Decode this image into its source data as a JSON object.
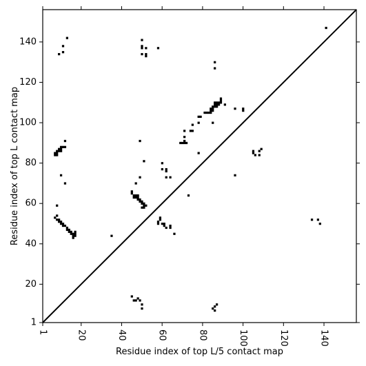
{
  "chart_data": {
    "type": "scatter",
    "subtype": "contact-map",
    "title": "",
    "xlabel": "Residue index of top L/5 contact map",
    "ylabel": "Residue index of top L contact map",
    "xlim": [
      1,
      156
    ],
    "ylim": [
      1,
      156
    ],
    "x_ticks": [
      1,
      20,
      40,
      60,
      80,
      100,
      120,
      140
    ],
    "y_ticks": [
      1,
      20,
      40,
      60,
      80,
      100,
      120,
      140
    ],
    "x_tick_labels": [
      "1",
      "20",
      "40",
      "60",
      "80",
      "100",
      "120",
      "140"
    ],
    "y_tick_labels": [
      "1",
      "20",
      "40",
      "60",
      "80",
      "100",
      "120",
      "140"
    ],
    "x_tick_rotation": 270,
    "diagonal_line": true,
    "grid": false,
    "mark_color": "#000000",
    "line_color": "#000000",
    "series": [
      {
        "name": "",
        "region": "above-diagonal",
        "points": [
          [
            9,
            134
          ],
          [
            11,
            135
          ],
          [
            11,
            138
          ],
          [
            13,
            142
          ],
          [
            50,
            134
          ],
          [
            50,
            137
          ],
          [
            50,
            138
          ],
          [
            50,
            141
          ],
          [
            52,
            133
          ],
          [
            52,
            134
          ],
          [
            52,
            137
          ],
          [
            58,
            137
          ],
          [
            86,
            127
          ],
          [
            86,
            130
          ],
          [
            89,
            110
          ],
          [
            89,
            111
          ],
          [
            89,
            112
          ],
          [
            91,
            109
          ],
          [
            96,
            107
          ],
          [
            100,
            106
          ],
          [
            100,
            107
          ],
          [
            141,
            147
          ],
          [
            71,
            90
          ],
          [
            71,
            91
          ],
          [
            71,
            93
          ],
          [
            71,
            96
          ],
          [
            75,
            96
          ],
          [
            75,
            99
          ],
          [
            78,
            100
          ],
          [
            78,
            103
          ],
          [
            81,
            105
          ],
          [
            82,
            105
          ],
          [
            83,
            105
          ],
          [
            84,
            105
          ],
          [
            84,
            106
          ],
          [
            84,
            107
          ],
          [
            85,
            106
          ],
          [
            85,
            107
          ],
          [
            85,
            108
          ],
          [
            86,
            108
          ],
          [
            86,
            109
          ],
          [
            86,
            110
          ],
          [
            87,
            108
          ],
          [
            87,
            109
          ],
          [
            87,
            110
          ],
          [
            88,
            109
          ],
          [
            88,
            110
          ],
          [
            85,
            100
          ],
          [
            70,
            90
          ],
          [
            72,
            90
          ],
          [
            74,
            96
          ],
          [
            79,
            103
          ],
          [
            69,
            90
          ]
        ]
      },
      {
        "name": "",
        "region": "below-diagonal",
        "points": [
          [
            7,
            84
          ],
          [
            7,
            85
          ],
          [
            8,
            84
          ],
          [
            8,
            85
          ],
          [
            8,
            86
          ],
          [
            9,
            86
          ],
          [
            9,
            87
          ],
          [
            10,
            86
          ],
          [
            10,
            87
          ],
          [
            10,
            88
          ],
          [
            11,
            88
          ],
          [
            12,
            88
          ],
          [
            12,
            91
          ],
          [
            10,
            74
          ],
          [
            12,
            70
          ],
          [
            7,
            53
          ],
          [
            8,
            54
          ],
          [
            8,
            52
          ],
          [
            9,
            52
          ],
          [
            9,
            51
          ],
          [
            10,
            51
          ],
          [
            10,
            50
          ],
          [
            11,
            50
          ],
          [
            11,
            49
          ],
          [
            12,
            49
          ],
          [
            13,
            48
          ],
          [
            13,
            47
          ],
          [
            14,
            47
          ],
          [
            14,
            46
          ],
          [
            15,
            45
          ],
          [
            15,
            46
          ],
          [
            16,
            45
          ],
          [
            16,
            44
          ],
          [
            17,
            44
          ],
          [
            17,
            45
          ],
          [
            17,
            46
          ],
          [
            16,
            43
          ],
          [
            8,
            59
          ],
          [
            35,
            44
          ],
          [
            45,
            66
          ],
          [
            45,
            65
          ],
          [
            46,
            64
          ],
          [
            46,
            63
          ],
          [
            47,
            63
          ],
          [
            47,
            64
          ],
          [
            48,
            64
          ],
          [
            48,
            63
          ],
          [
            48,
            62
          ],
          [
            49,
            62
          ],
          [
            49,
            61
          ],
          [
            50,
            61
          ],
          [
            50,
            60
          ],
          [
            51,
            60
          ],
          [
            51,
            59
          ],
          [
            52,
            59
          ],
          [
            51,
            58
          ],
          [
            50,
            58
          ],
          [
            47,
            70
          ],
          [
            49,
            73
          ],
          [
            49,
            91
          ],
          [
            51,
            81
          ],
          [
            58,
            50
          ],
          [
            58,
            51
          ],
          [
            59,
            52
          ],
          [
            59,
            53
          ],
          [
            60,
            50
          ],
          [
            61,
            49
          ],
          [
            61,
            50
          ],
          [
            62,
            48
          ],
          [
            64,
            48
          ],
          [
            64,
            49
          ],
          [
            66,
            45
          ],
          [
            60,
            77
          ],
          [
            60,
            80
          ],
          [
            62,
            76
          ],
          [
            62,
            77
          ],
          [
            62,
            73
          ],
          [
            64,
            73
          ],
          [
            73,
            64
          ],
          [
            78,
            85
          ],
          [
            45,
            14
          ],
          [
            46,
            12
          ],
          [
            47,
            12
          ],
          [
            48,
            13
          ],
          [
            49,
            12
          ],
          [
            50,
            10
          ],
          [
            50,
            8
          ],
          [
            85,
            8
          ],
          [
            86,
            7
          ],
          [
            86,
            9
          ],
          [
            87,
            10
          ],
          [
            96,
            74
          ],
          [
            105,
            85
          ],
          [
            105,
            86
          ],
          [
            106,
            84
          ],
          [
            108,
            84
          ],
          [
            108,
            86
          ],
          [
            109,
            87
          ],
          [
            134,
            52
          ],
          [
            137,
            52
          ],
          [
            138,
            50
          ]
        ]
      }
    ]
  }
}
